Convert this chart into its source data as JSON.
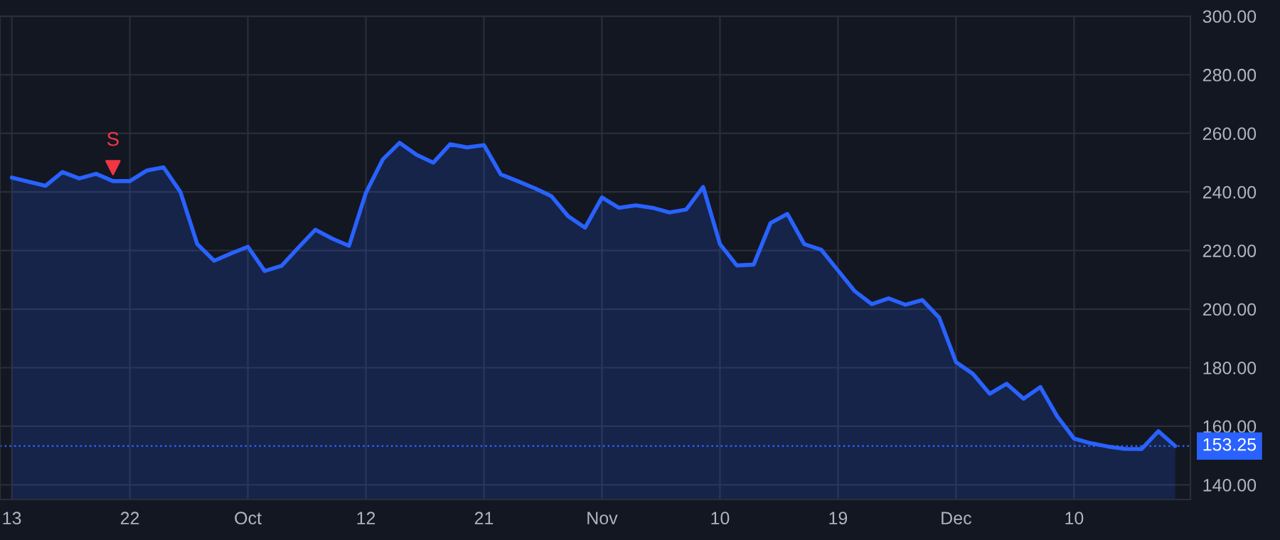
{
  "chart_data": {
    "type": "area",
    "categories": [
      "13",
      null,
      null,
      null,
      null,
      null,
      null,
      "22",
      null,
      null,
      null,
      null,
      null,
      null,
      "Oct",
      null,
      null,
      null,
      null,
      null,
      null,
      "12",
      null,
      null,
      null,
      null,
      null,
      null,
      "21",
      null,
      null,
      null,
      null,
      null,
      null,
      "Nov",
      null,
      null,
      null,
      null,
      null,
      null,
      "10",
      null,
      null,
      null,
      null,
      null,
      null,
      "19",
      null,
      null,
      null,
      null,
      null,
      null,
      "Dec",
      null,
      null,
      null,
      null,
      null,
      null,
      "10",
      null,
      null,
      null,
      null,
      null,
      null
    ],
    "series": [
      {
        "color": "#2962ff",
        "values": [
          244.9,
          243.5,
          242.1,
          246.8,
          244.6,
          246.2,
          243.7,
          243.7,
          247.3,
          248.4,
          240,
          222.2,
          216.5,
          219,
          221.3,
          213,
          214.8,
          221,
          227.1,
          224.1,
          221.6,
          239.7,
          251.1,
          256.8,
          252.7,
          250,
          256.3,
          255.2,
          256,
          246,
          243.7,
          241.3,
          238.6,
          231.7,
          227.8,
          238.1,
          234.6,
          235.4,
          234.6,
          233,
          234,
          241.7,
          222.2,
          214.9,
          215.2,
          229.4,
          232.5,
          222.2,
          220.3,
          213.2,
          206.1,
          201.7,
          203.7,
          201.5,
          203.1,
          197.1,
          181.9,
          177.9,
          171.1,
          174.5,
          169.4,
          173.4,
          163.4,
          155.8,
          154.2,
          153.1,
          152.3,
          152.2,
          158.3,
          153.25
        ]
      },
      {
        "type": "scatter",
        "name": "S",
        "color": "#f23645",
        "marker": "triangle",
        "values": [
          null,
          null,
          null,
          null,
          null,
          null,
          248.3,
          null,
          null,
          null,
          null,
          null,
          null,
          null,
          null,
          null,
          null,
          null,
          null,
          null,
          null,
          null,
          null,
          null,
          null,
          null,
          null,
          null,
          null,
          null,
          null,
          null,
          null,
          null,
          null,
          null,
          null,
          null,
          null,
          null,
          null,
          null,
          null,
          null,
          null,
          null,
          null,
          null,
          null,
          null,
          null,
          null,
          null,
          null,
          null,
          null,
          null,
          null,
          null,
          null,
          null,
          null,
          null,
          null,
          null,
          null,
          null,
          null,
          null,
          null
        ]
      }
    ],
    "ylim": [
      135,
      300
    ],
    "yticks": [
      {
        "value": 140,
        "label": "140.00"
      },
      {
        "value": 160,
        "label": "160.00"
      },
      {
        "value": 180,
        "label": "180.00"
      },
      {
        "value": 200,
        "label": "200.00"
      },
      {
        "value": 220,
        "label": "220.00"
      },
      {
        "value": 240,
        "label": "240.00"
      },
      {
        "value": 260,
        "label": "260.00"
      },
      {
        "value": 280,
        "label": "280.00"
      },
      {
        "value": 300,
        "label": "300.00"
      }
    ],
    "ref_lines": [
      {
        "axis": "y",
        "value": 153.25,
        "label": "153.25",
        "color": "#2962ff",
        "line_style": "dotted"
      }
    ],
    "grid": true
  }
}
